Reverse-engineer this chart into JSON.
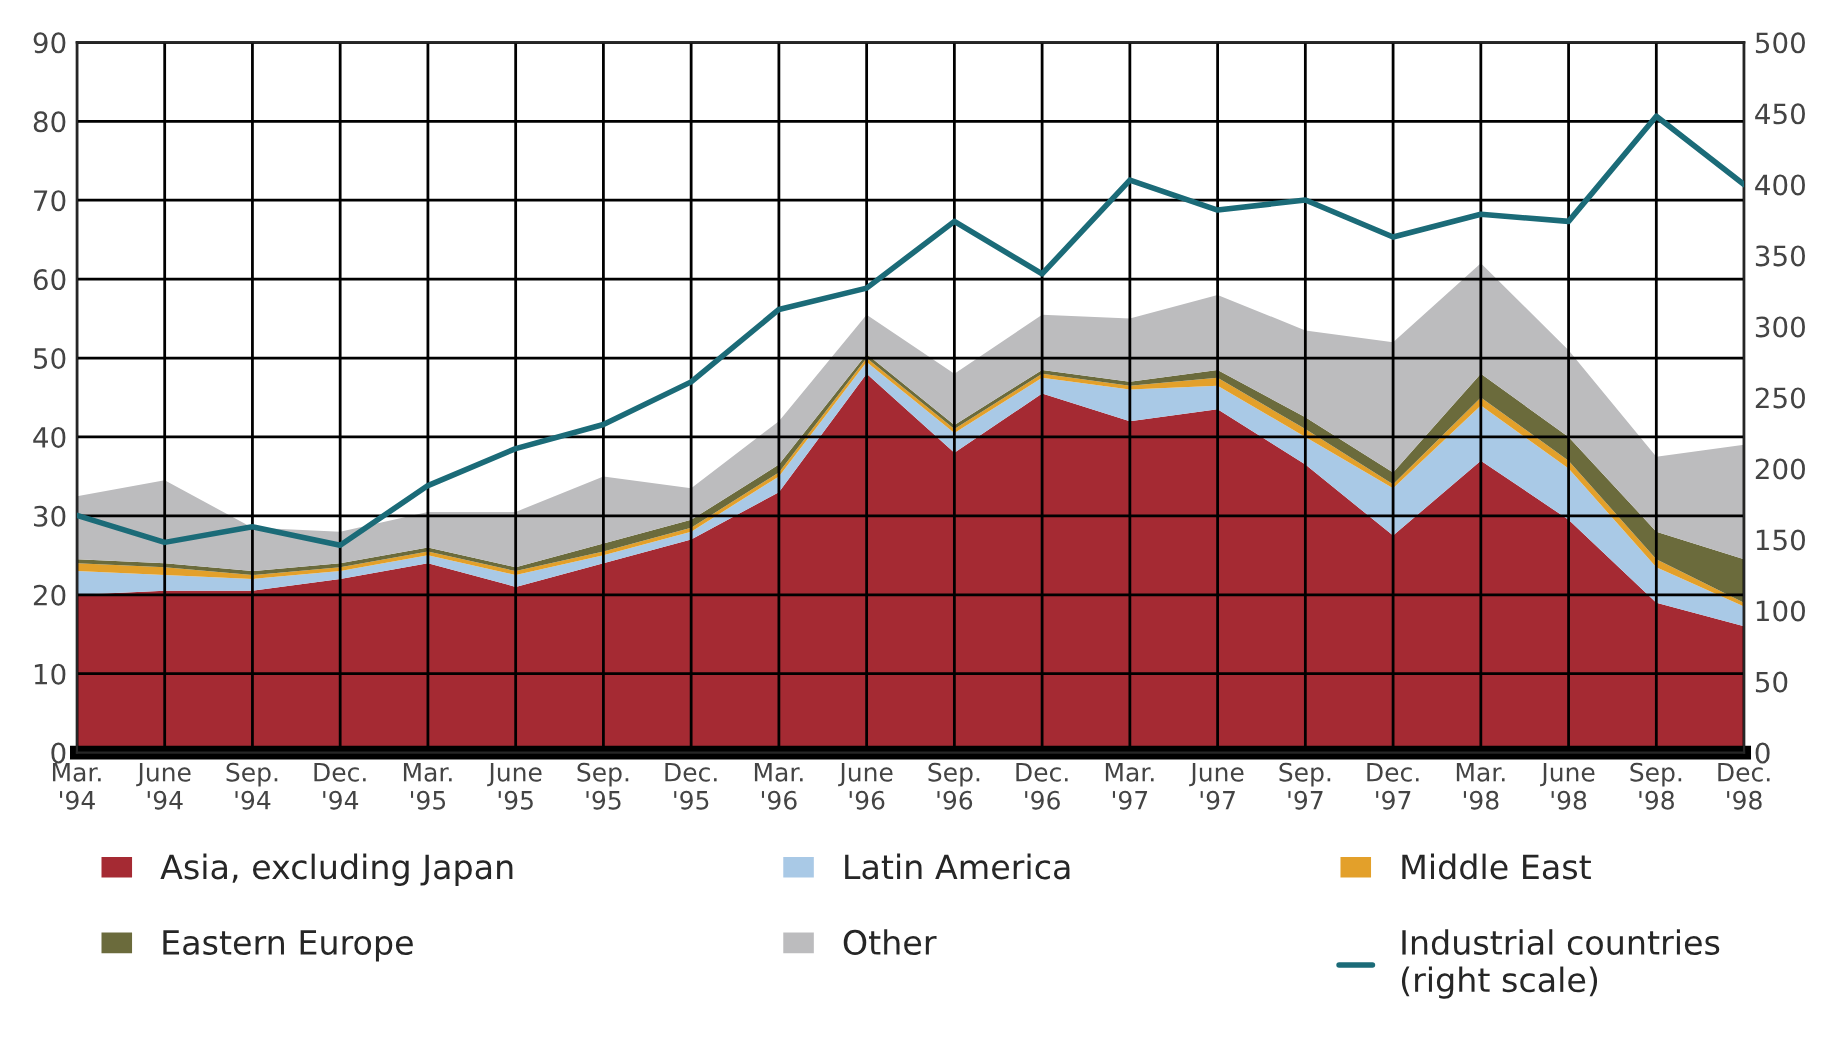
{
  "chart_data": {
    "type": "area",
    "stacked": true,
    "categories": [
      "Mar.\n'94",
      "June\n'94",
      "Sep.\n'94",
      "Dec.\n'94",
      "Mar.\n'95",
      "June\n'95",
      "Sep.\n'95",
      "Dec.\n'95",
      "Mar.\n'96",
      "June\n'96",
      "Sep.\n'96",
      "Dec.\n'96",
      "Mar.\n'97",
      "June\n'97",
      "Sep.\n'97",
      "Dec.\n'97",
      "Mar.\n'98",
      "June\n'98",
      "Sep.\n'98",
      "Dec.\n'98"
    ],
    "series": [
      {
        "name": "Asia, excluding Japan",
        "color": "#a52a33",
        "values": [
          20,
          20.5,
          20.5,
          22,
          24,
          21,
          24,
          27,
          33,
          48,
          38,
          45.5,
          42,
          43.5,
          36.5,
          27.5,
          37,
          29.5,
          19,
          16
        ]
      },
      {
        "name": "Latin America",
        "color": "#a9c9e6",
        "values": [
          3,
          2,
          1.5,
          1,
          1,
          1.5,
          1,
          1,
          2,
          1.5,
          2.5,
          2,
          4,
          3,
          3.5,
          6,
          7,
          6.5,
          4.5,
          2.5
        ]
      },
      {
        "name": "Middle East",
        "color": "#e3a02a",
        "values": [
          1,
          1,
          0.5,
          0.5,
          0.5,
          0.5,
          0.5,
          0.5,
          0.5,
          0.5,
          0.5,
          0.5,
          0.5,
          1,
          1,
          0.5,
          1,
          1,
          1,
          0.5
        ]
      },
      {
        "name": "Eastern Europe",
        "color": "#6b6b3c",
        "values": [
          0.5,
          0.5,
          0.5,
          0.5,
          0.5,
          0.5,
          1,
          1,
          1,
          0.5,
          0.5,
          0.5,
          0.5,
          1,
          1.5,
          1.5,
          3,
          3,
          3.5,
          5.5
        ]
      },
      {
        "name": "Other",
        "color": "#bcbcbe",
        "values": [
          8,
          10.5,
          5.5,
          4,
          4.5,
          7,
          8.5,
          4,
          5.5,
          5,
          6.5,
          7,
          8,
          9.5,
          11,
          16.5,
          14,
          11,
          9.5,
          14.5
        ]
      },
      {
        "name": "Industrial countries\n(right scale)",
        "color": "#1b6b78",
        "type": "line",
        "axis": "y2",
        "values": [
          167,
          148,
          159,
          146,
          188,
          214,
          231,
          261,
          312,
          327,
          374,
          337,
          403,
          382,
          389,
          363,
          379,
          374,
          448,
          400
        ]
      }
    ],
    "ylim": [
      0,
      90
    ],
    "yticks": [
      0,
      10,
      20,
      30,
      40,
      50,
      60,
      70,
      80,
      90
    ],
    "y2lim": [
      0,
      500
    ],
    "y2ticks": [
      0,
      50,
      100,
      150,
      200,
      250,
      300,
      350,
      400,
      450,
      500
    ],
    "grid": true,
    "legend": "bottom",
    "line_style": "solid",
    "marker": "none"
  }
}
